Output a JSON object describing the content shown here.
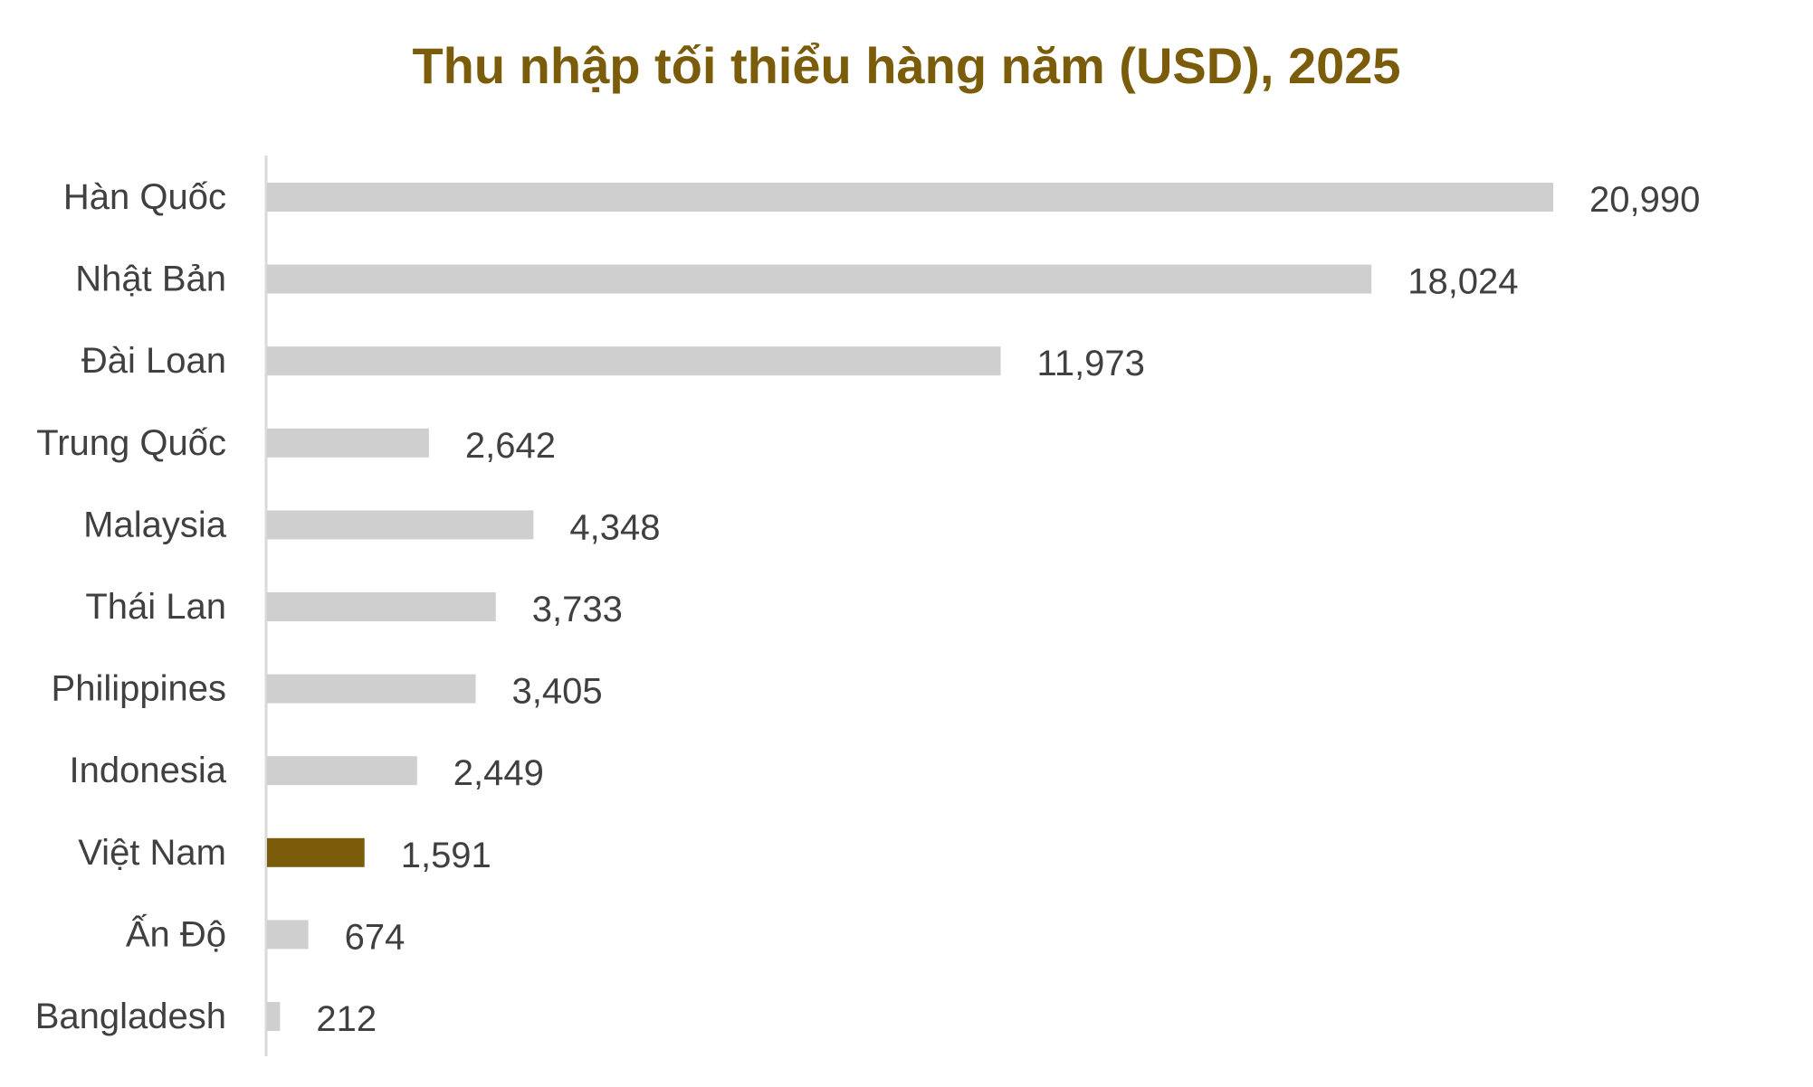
{
  "chart_data": {
    "type": "bar",
    "orientation": "horizontal",
    "title": "Thu nhập tối thiểu hàng năm (USD), 2025",
    "categories": [
      "Hàn Quốc",
      "Nhật Bản",
      "Đài Loan",
      "Trung Quốc",
      "Malaysia",
      "Thái Lan",
      "Philippines",
      "Indonesia",
      "Việt Nam",
      "Ấn Độ",
      "Bangladesh"
    ],
    "values": [
      20990,
      18024,
      11973,
      2642,
      4348,
      3733,
      3405,
      2449,
      1591,
      674,
      212
    ],
    "value_labels": [
      "20,990",
      "18,024",
      "11,973",
      "2,642",
      "4,348",
      "3,733",
      "3,405",
      "2,449",
      "1,591",
      "674",
      "212"
    ],
    "highlight": "Việt Nam",
    "bar_color": "#d0cfcf",
    "highlight_color": "#7a5c0a",
    "title_color": "#7a5c0a",
    "text_color": "#404040",
    "xlim": [
      0,
      20990
    ],
    "grid": false,
    "legend": "none"
  }
}
